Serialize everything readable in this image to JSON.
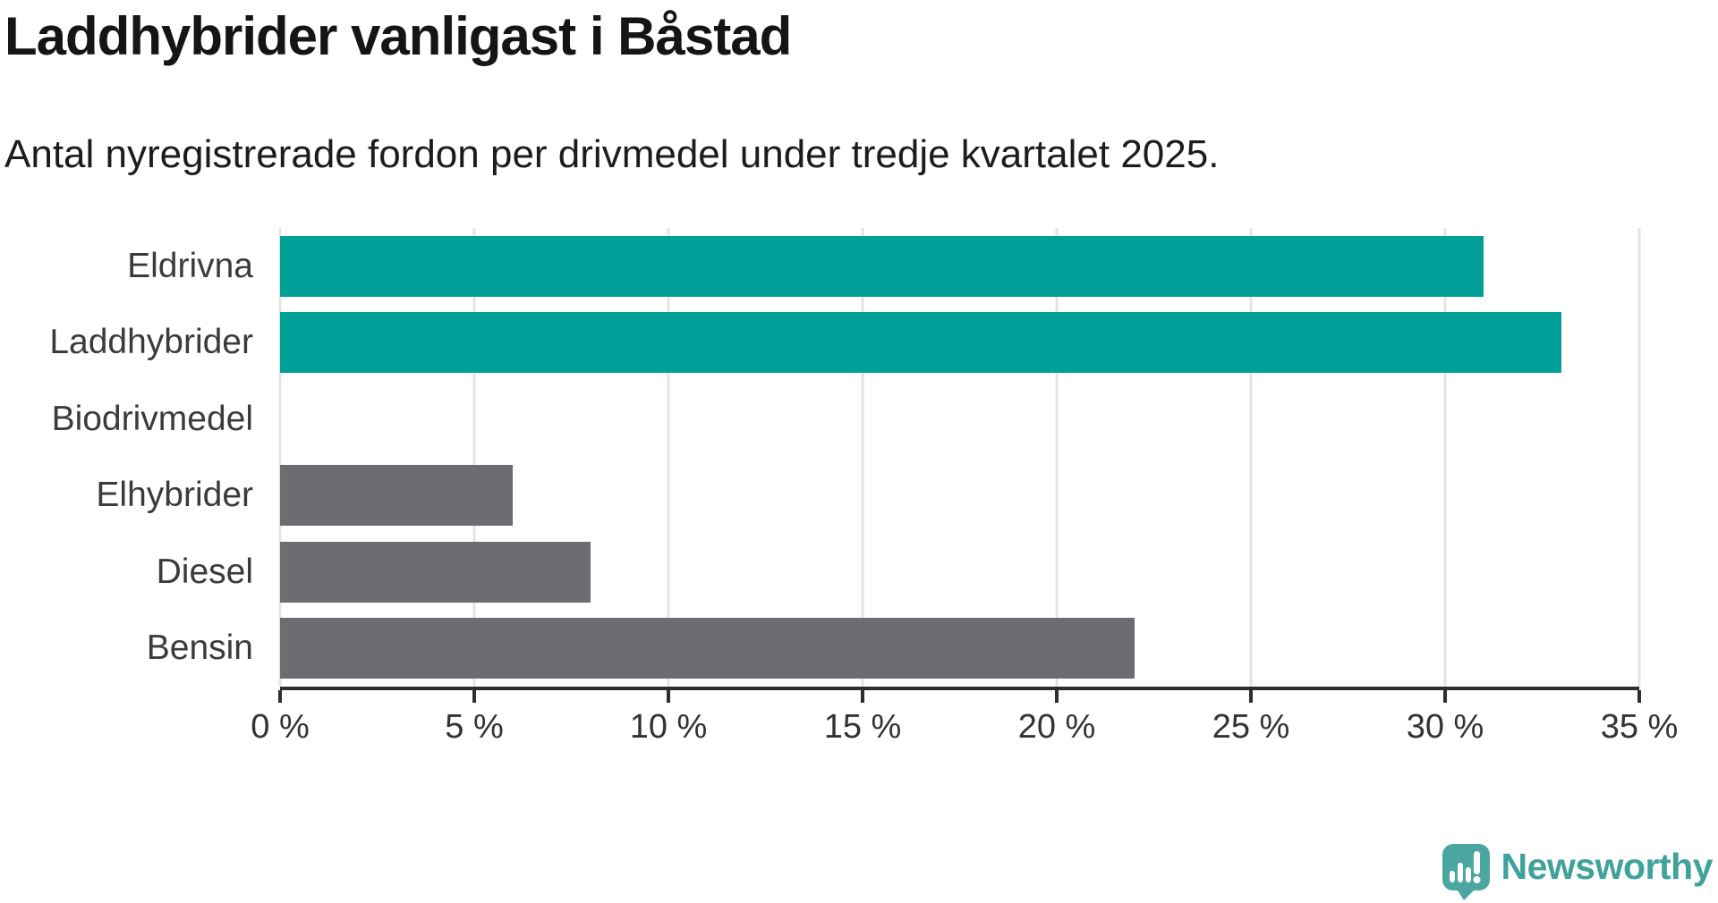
{
  "title": "Laddhybrider vanligast i Båstad",
  "subtitle": "Antal nyregistrerade fordon per drivmedel under tredje kvartalet 2025.",
  "branding": {
    "wordmark": "Newsworthy"
  },
  "colors": {
    "highlight_bar": "#00a099",
    "default_bar": "#6c6c71",
    "gridline": "#e4e4e4",
    "axis": "#2e2e2e",
    "title_text": "#151515",
    "label_text": "#3b3b3b",
    "logo_bubble": "#4ba6a0",
    "logo_wordmark": "#3fa29b"
  },
  "chart_data": {
    "type": "bar",
    "orientation": "horizontal",
    "title": "Laddhybrider vanligast i Båstad",
    "subtitle": "Antal nyregistrerade fordon per drivmedel under tredje kvartalet 2025.",
    "categories": [
      "Eldrivna",
      "Laddhybrider",
      "Biodrivmedel",
      "Elhybrider",
      "Diesel",
      "Bensin"
    ],
    "values": [
      31,
      33,
      0,
      6,
      8,
      22
    ],
    "unit": "%",
    "bar_colors": [
      "#00a099",
      "#00a099",
      "#6c6c71",
      "#6c6c71",
      "#6c6c71",
      "#6c6c71"
    ],
    "xlim": [
      0,
      35
    ],
    "x_ticks": [
      0,
      5,
      10,
      15,
      20,
      25,
      30,
      35
    ],
    "x_tick_labels": [
      "0 %",
      "5 %",
      "10 %",
      "15 %",
      "20 %",
      "25 %",
      "30 %",
      "35 %"
    ],
    "grid": true,
    "legend": false,
    "xlabel": "",
    "ylabel": ""
  }
}
